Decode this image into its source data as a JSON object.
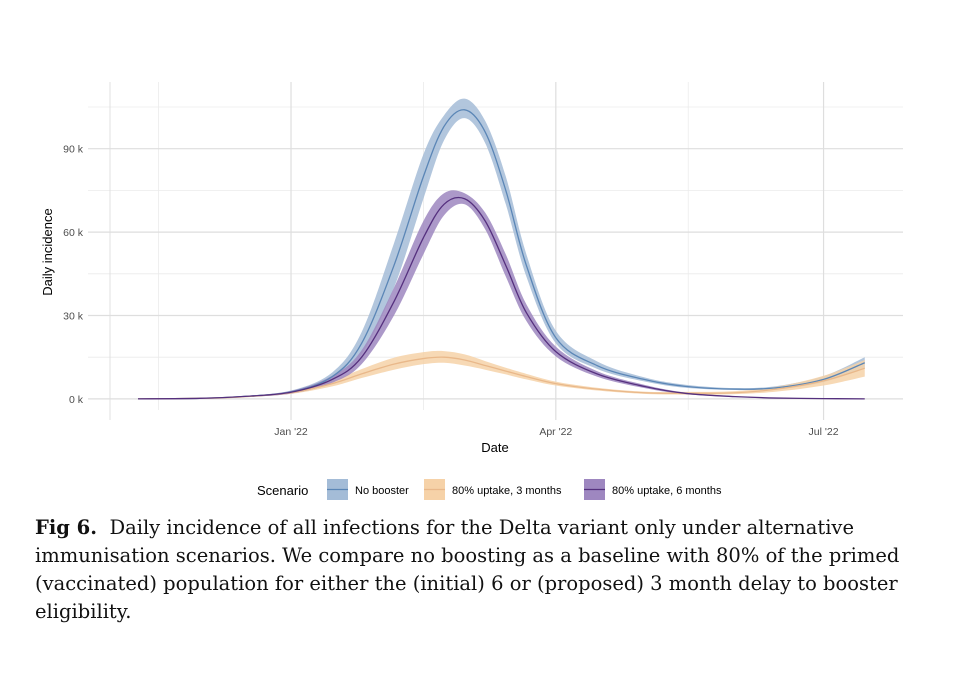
{
  "chart_data": {
    "type": "area",
    "xlabel": "Date",
    "ylabel": "Daily incidence",
    "x_ticks": [
      {
        "date": "2022-01-01",
        "label": "Jan '22"
      },
      {
        "date": "2022-04-01",
        "label": "Apr '22"
      },
      {
        "date": "2022-07-01",
        "label": "Jul '22"
      }
    ],
    "y_ticks": [
      {
        "value": 0,
        "label": "0 k"
      },
      {
        "value": 30000,
        "label": "30 k"
      },
      {
        "value": 60000,
        "label": "60 k"
      },
      {
        "value": 90000,
        "label": "90 k"
      }
    ],
    "xlim": [
      "2021-10-24",
      "2022-07-28"
    ],
    "ylim": [
      -4000,
      114000
    ],
    "grid": true,
    "legend": {
      "title": "Scenario",
      "position": "bottom"
    },
    "series": [
      {
        "name": "No booster",
        "color": "#5b86b6",
        "band_color": "#a4bcd7",
        "x": [
          "2021-11-10",
          "2021-12-01",
          "2021-12-15",
          "2022-01-01",
          "2022-01-15",
          "2022-01-25",
          "2022-02-05",
          "2022-02-15",
          "2022-02-22",
          "2022-03-01",
          "2022-03-08",
          "2022-03-15",
          "2022-03-22",
          "2022-04-01",
          "2022-04-15",
          "2022-05-01",
          "2022-05-15",
          "2022-06-01",
          "2022-06-15",
          "2022-07-01",
          "2022-07-15"
        ],
        "y": [
          0,
          200,
          800,
          2500,
          8000,
          20000,
          48000,
          80000,
          98000,
          104000,
          96000,
          75000,
          48000,
          22000,
          12000,
          7000,
          4500,
          3500,
          4000,
          7000,
          13000
        ],
        "lower": [
          0,
          150,
          600,
          2000,
          6500,
          16000,
          40000,
          72000,
          93000,
          101000,
          92000,
          70000,
          44000,
          20000,
          10800,
          6300,
          4000,
          3200,
          3500,
          6000,
          11000
        ],
        "upper": [
          0,
          250,
          1000,
          3000,
          9500,
          24000,
          56000,
          88000,
          102000,
          108000,
          100000,
          80000,
          52000,
          24500,
          13500,
          7800,
          5100,
          3900,
          4600,
          8200,
          15000
        ]
      },
      {
        "name": "80% uptake, 3 months",
        "color": "#e9b88a",
        "band_color": "#f6d2a8",
        "x": [
          "2021-11-10",
          "2021-12-01",
          "2021-12-15",
          "2022-01-01",
          "2022-01-15",
          "2022-01-25",
          "2022-02-05",
          "2022-02-15",
          "2022-02-22",
          "2022-03-01",
          "2022-03-08",
          "2022-03-15",
          "2022-03-22",
          "2022-04-01",
          "2022-04-15",
          "2022-05-01",
          "2022-05-15",
          "2022-06-01",
          "2022-06-15",
          "2022-07-01",
          "2022-07-15"
        ],
        "y": [
          0,
          200,
          700,
          2200,
          5500,
          9000,
          12500,
          14500,
          15000,
          14000,
          12000,
          10000,
          8000,
          5500,
          3500,
          2200,
          2000,
          2200,
          3500,
          6500,
          11000
        ],
        "lower": [
          0,
          150,
          550,
          1800,
          4500,
          7500,
          10500,
          12500,
          13000,
          12000,
          10500,
          8800,
          7000,
          4800,
          3000,
          1800,
          1500,
          1700,
          2600,
          4800,
          8000
        ],
        "upper": [
          0,
          250,
          850,
          2600,
          6500,
          10700,
          14800,
          16800,
          17200,
          16000,
          13600,
          11200,
          9000,
          6200,
          4000,
          2600,
          2500,
          2800,
          4400,
          8300,
          14000
        ]
      },
      {
        "name": "80% uptake, 6 months",
        "color": "#55307e",
        "band_color": "#9e87c0",
        "x": [
          "2021-11-10",
          "2021-12-01",
          "2021-12-15",
          "2022-01-01",
          "2022-01-15",
          "2022-01-25",
          "2022-02-05",
          "2022-02-15",
          "2022-02-22",
          "2022-03-01",
          "2022-03-08",
          "2022-03-15",
          "2022-03-22",
          "2022-04-01",
          "2022-04-15",
          "2022-05-01",
          "2022-05-15",
          "2022-06-01",
          "2022-06-15",
          "2022-07-01",
          "2022-07-15"
        ],
        "y": [
          0,
          200,
          800,
          2400,
          7000,
          15000,
          35000,
          58000,
          70000,
          72000,
          64000,
          48000,
          31000,
          17000,
          9000,
          4500,
          2000,
          800,
          300,
          100,
          0
        ],
        "lower": [
          0,
          150,
          600,
          1900,
          5800,
          12500,
          30000,
          52000,
          66000,
          70000,
          61000,
          44000,
          28000,
          15300,
          8000,
          3900,
          1700,
          650,
          230,
          70,
          0
        ],
        "upper": [
          0,
          250,
          1000,
          2900,
          8300,
          17500,
          40000,
          64000,
          74000,
          74000,
          67000,
          52000,
          34000,
          18800,
          10000,
          5100,
          2300,
          950,
          380,
          130,
          0
        ]
      }
    ]
  },
  "caption": {
    "label": "Fig 6.",
    "text": "Daily incidence of all infections for the Delta variant only under alternative immunisation scenarios. We compare no boosting as a baseline with 80% of the primed (vaccinated) population for either the (initial) 6 or (proposed) 3 month delay to booster eligibility."
  }
}
